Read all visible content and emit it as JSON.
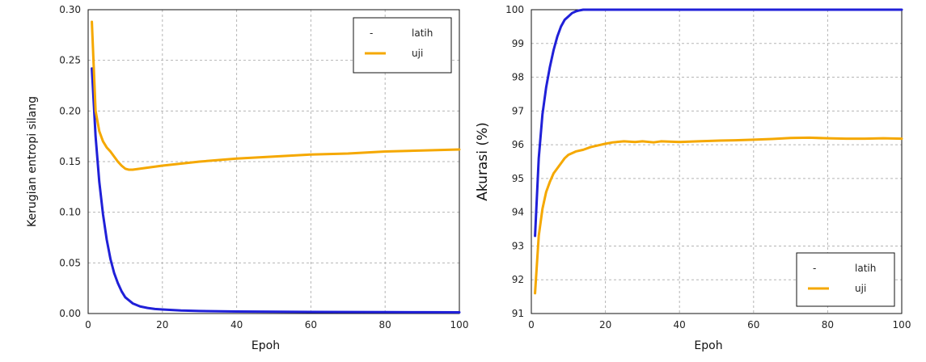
{
  "chart_data": [
    {
      "type": "line",
      "xlabel": "Epoh",
      "ylabel": "Kerugian entropi silang",
      "xlim": [
        0,
        100
      ],
      "ylim": [
        0,
        0.3
      ],
      "xticks": [
        "0",
        "20",
        "40",
        "60",
        "80",
        "100"
      ],
      "yticks": [
        "0.00",
        "0.05",
        "0.10",
        "0.15",
        "0.20",
        "0.25",
        "0.30"
      ],
      "grid": true,
      "legend_position": "top-right",
      "legend_marker": "-",
      "series": [
        {
          "name": "latih",
          "color": "#2020d8",
          "x": [
            1,
            2,
            3,
            4,
            5,
            6,
            7,
            8,
            9,
            10,
            12,
            14,
            16,
            18,
            20,
            25,
            30,
            40,
            50,
            60,
            70,
            80,
            90,
            100
          ],
          "y": [
            0.242,
            0.175,
            0.13,
            0.098,
            0.073,
            0.054,
            0.04,
            0.03,
            0.022,
            0.016,
            0.01,
            0.007,
            0.0055,
            0.0045,
            0.004,
            0.003,
            0.0025,
            0.002,
            0.0018,
            0.0016,
            0.0015,
            0.0014,
            0.0013,
            0.0012
          ]
        },
        {
          "name": "uji",
          "color": "#f5a800",
          "x": [
            1,
            2,
            3,
            4,
            5,
            6,
            7,
            8,
            9,
            10,
            11,
            12,
            14,
            16,
            18,
            20,
            25,
            30,
            40,
            50,
            60,
            70,
            80,
            90,
            100
          ],
          "y": [
            0.288,
            0.2,
            0.18,
            0.17,
            0.164,
            0.16,
            0.155,
            0.15,
            0.146,
            0.143,
            0.142,
            0.142,
            0.143,
            0.144,
            0.145,
            0.146,
            0.148,
            0.15,
            0.153,
            0.155,
            0.157,
            0.158,
            0.16,
            0.161,
            0.162
          ]
        }
      ]
    },
    {
      "type": "line",
      "xlabel": "Epoh",
      "ylabel": "Akurasi (%)",
      "xlim": [
        0,
        100
      ],
      "ylim": [
        91,
        100
      ],
      "xticks": [
        "0",
        "20",
        "40",
        "60",
        "80",
        "100"
      ],
      "yticks": [
        "91",
        "92",
        "93",
        "94",
        "95",
        "96",
        "97",
        "98",
        "99",
        "100"
      ],
      "grid": true,
      "legend_position": "bottom-right",
      "legend_marker": "-",
      "series": [
        {
          "name": "latih",
          "color": "#2020d8",
          "x": [
            1,
            2,
            3,
            4,
            5,
            6,
            7,
            8,
            9,
            10,
            11,
            12,
            13,
            14,
            15,
            20,
            30,
            40,
            50,
            60,
            70,
            80,
            90,
            100
          ],
          "y": [
            93.3,
            95.6,
            96.9,
            97.7,
            98.3,
            98.8,
            99.2,
            99.5,
            99.7,
            99.8,
            99.9,
            99.95,
            99.98,
            100,
            100,
            100,
            100,
            100,
            100,
            100,
            100,
            100,
            100,
            100
          ]
        },
        {
          "name": "uji",
          "color": "#f5a800",
          "x": [
            1,
            2,
            3,
            4,
            5,
            6,
            7,
            8,
            9,
            10,
            12,
            14,
            16,
            18,
            20,
            22,
            25,
            28,
            30,
            33,
            35,
            40,
            45,
            50,
            55,
            60,
            65,
            70,
            75,
            80,
            85,
            90,
            95,
            100
          ],
          "y": [
            91.6,
            93.3,
            94.1,
            94.6,
            94.9,
            95.15,
            95.3,
            95.45,
            95.6,
            95.7,
            95.8,
            95.85,
            95.93,
            95.98,
            96.03,
            96.07,
            96.1,
            96.08,
            96.1,
            96.07,
            96.1,
            96.08,
            96.1,
            96.12,
            96.13,
            96.15,
            96.17,
            96.2,
            96.21,
            96.19,
            96.18,
            96.18,
            96.19,
            96.18
          ]
        }
      ]
    }
  ]
}
